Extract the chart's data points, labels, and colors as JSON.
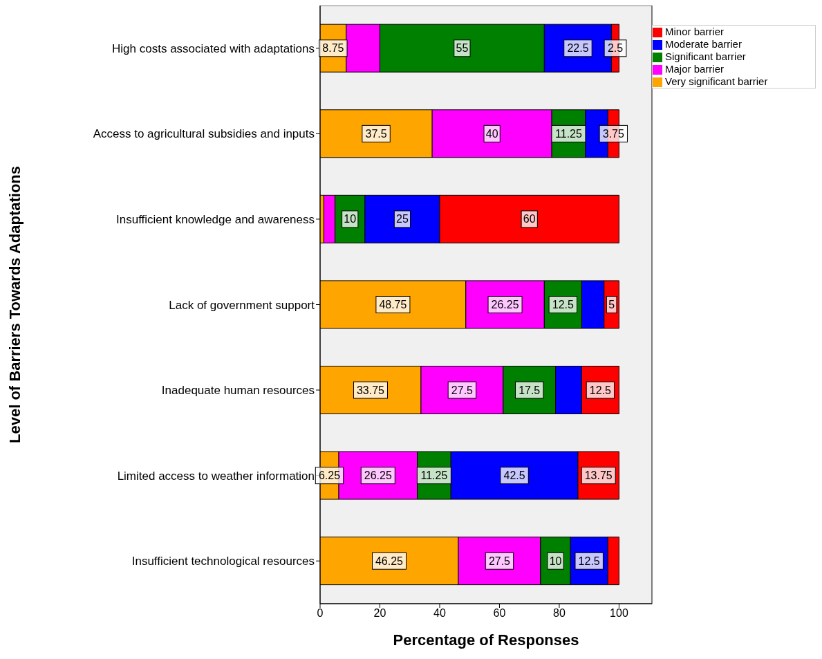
{
  "chart_data": {
    "type": "bar",
    "orientation": "horizontal",
    "stacked": true,
    "xlabel": "Percentage of Responses",
    "ylabel": "Level of Barriers Towards Adaptations",
    "categories": [
      "High costs associated with adaptations",
      "Access to agricultural subsidies and inputs",
      "Insufficient knowledge and awareness",
      "Lack of government support",
      "Inadequate human resources",
      "Limited access to weather information",
      "Insufficient technological resources"
    ],
    "series": [
      {
        "name": "Very significant barrier",
        "color": "#ffa500",
        "values": [
          8.75,
          37.5,
          1.25,
          48.75,
          33.75,
          6.25,
          46.25
        ],
        "value_labels": [
          "8.75",
          "37.5",
          null,
          "48.75",
          "33.75",
          "6.25",
          "46.25"
        ]
      },
      {
        "name": "Major barrier",
        "color": "#ff00ff",
        "values": [
          11.25,
          40,
          3.75,
          26.25,
          27.5,
          26.25,
          27.5
        ],
        "value_labels": [
          null,
          "40",
          null,
          "26.25",
          "27.5",
          "26.25",
          "27.5"
        ]
      },
      {
        "name": "Significant barrier",
        "color": "#008000",
        "values": [
          55,
          11.25,
          10,
          12.5,
          17.5,
          11.25,
          10
        ],
        "value_labels": [
          "55",
          "11.25",
          "10",
          "12.5",
          "17.5",
          "11.25",
          "10"
        ]
      },
      {
        "name": "Moderate barrier",
        "color": "#0000ff",
        "values": [
          22.5,
          7.5,
          25,
          7.5,
          8.75,
          42.5,
          12.5
        ],
        "value_labels": [
          "22.5",
          null,
          "25",
          null,
          null,
          "42.5",
          "12.5"
        ]
      },
      {
        "name": "Minor barrier",
        "color": "#ff0000",
        "values": [
          2.5,
          3.75,
          60,
          5,
          12.5,
          13.75,
          3.75
        ],
        "value_labels": [
          "2.5",
          "3.75",
          "60",
          "5",
          "12.5",
          "13.75",
          null
        ]
      }
    ],
    "xlim": [
      0,
      111
    ],
    "xticks": [
      0,
      20,
      40,
      60,
      80,
      100
    ],
    "grid": false,
    "legend": "top right"
  }
}
